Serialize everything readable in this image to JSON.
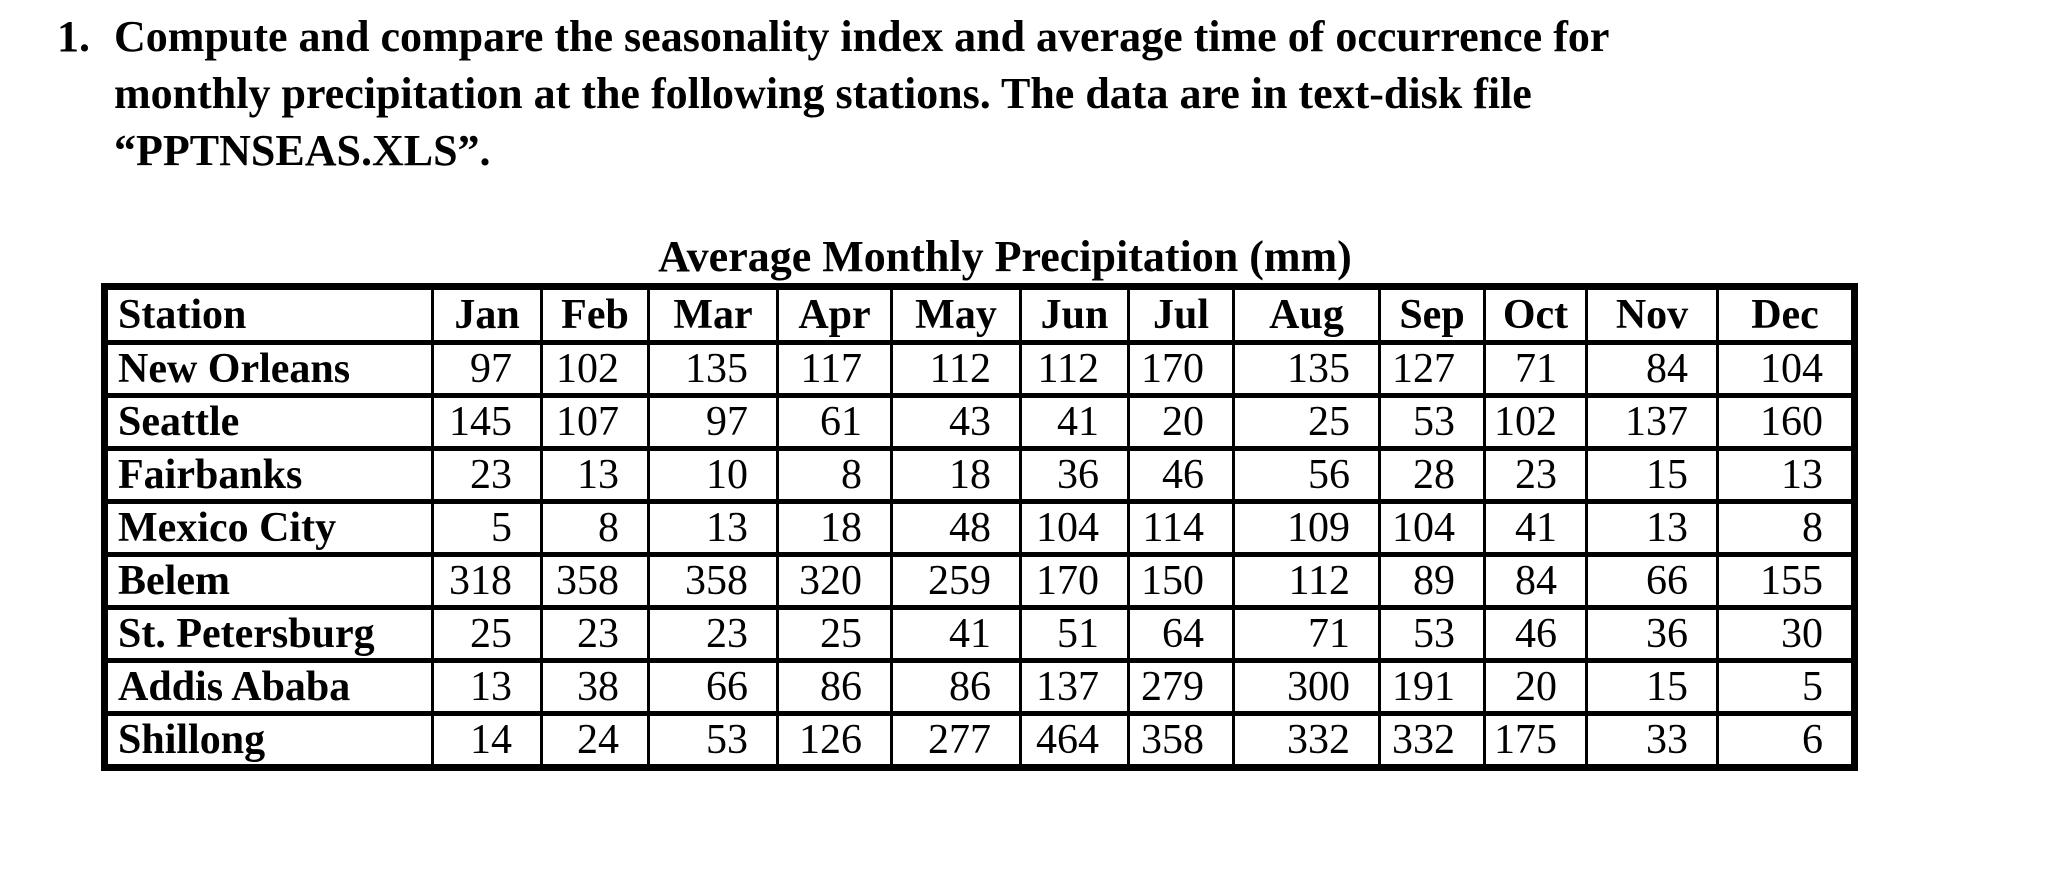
{
  "problem": {
    "number": "1.",
    "lines": [
      "Compute and compare the seasonality index and average time of occurrence for",
      "monthly precipitation at the following stations. The data are in text-disk file",
      "“PPTNSEAS.XLS”."
    ]
  },
  "table": {
    "title": "Average Monthly Precipitation (mm)",
    "station_header": "Station",
    "months": [
      "Jan",
      "Feb",
      "Mar",
      "Apr",
      "May",
      "Jun",
      "Jul",
      "Aug",
      "Sep",
      "Oct",
      "Nov",
      "Dec"
    ],
    "rows": [
      {
        "station": "New Orleans",
        "values": [
          97,
          102,
          135,
          117,
          112,
          112,
          170,
          135,
          127,
          71,
          84,
          104
        ]
      },
      {
        "station": "Seattle",
        "values": [
          145,
          107,
          97,
          61,
          43,
          41,
          20,
          25,
          53,
          102,
          137,
          160
        ]
      },
      {
        "station": "Fairbanks",
        "values": [
          23,
          13,
          10,
          8,
          18,
          36,
          46,
          56,
          28,
          23,
          15,
          13
        ]
      },
      {
        "station": "Mexico City",
        "values": [
          5,
          8,
          13,
          18,
          48,
          104,
          114,
          109,
          104,
          41,
          13,
          8
        ]
      },
      {
        "station": "Belem",
        "values": [
          318,
          358,
          358,
          320,
          259,
          170,
          150,
          112,
          89,
          84,
          66,
          155
        ]
      },
      {
        "station": "St. Petersburg",
        "values": [
          25,
          23,
          23,
          25,
          41,
          51,
          64,
          71,
          53,
          46,
          36,
          30
        ]
      },
      {
        "station": "Addis Ababa",
        "values": [
          13,
          38,
          66,
          86,
          86,
          137,
          279,
          300,
          191,
          20,
          15,
          5
        ]
      },
      {
        "station": "Shillong",
        "values": [
          14,
          24,
          53,
          126,
          277,
          464,
          358,
          332,
          332,
          175,
          33,
          6
        ]
      }
    ]
  },
  "chart_data": {
    "type": "table",
    "title": "Average Monthly Precipitation (mm)",
    "columns": [
      "Station",
      "Jan",
      "Feb",
      "Mar",
      "Apr",
      "May",
      "Jun",
      "Jul",
      "Aug",
      "Sep",
      "Oct",
      "Nov",
      "Dec"
    ],
    "rows": [
      [
        "New Orleans",
        97,
        102,
        135,
        117,
        112,
        112,
        170,
        135,
        127,
        71,
        84,
        104
      ],
      [
        "Seattle",
        145,
        107,
        97,
        61,
        43,
        41,
        20,
        25,
        53,
        102,
        137,
        160
      ],
      [
        "Fairbanks",
        23,
        13,
        10,
        8,
        18,
        36,
        46,
        56,
        28,
        23,
        15,
        13
      ],
      [
        "Mexico City",
        5,
        8,
        13,
        18,
        48,
        104,
        114,
        109,
        104,
        41,
        13,
        8
      ],
      [
        "Belem",
        318,
        358,
        358,
        320,
        259,
        170,
        150,
        112,
        89,
        84,
        66,
        155
      ],
      [
        "St. Petersburg",
        25,
        23,
        23,
        25,
        41,
        51,
        64,
        71,
        53,
        46,
        36,
        30
      ],
      [
        "Addis Ababa",
        13,
        38,
        66,
        86,
        86,
        137,
        279,
        300,
        191,
        20,
        15,
        5
      ],
      [
        "Shillong",
        14,
        24,
        53,
        126,
        277,
        464,
        358,
        332,
        332,
        175,
        33,
        6
      ]
    ]
  }
}
